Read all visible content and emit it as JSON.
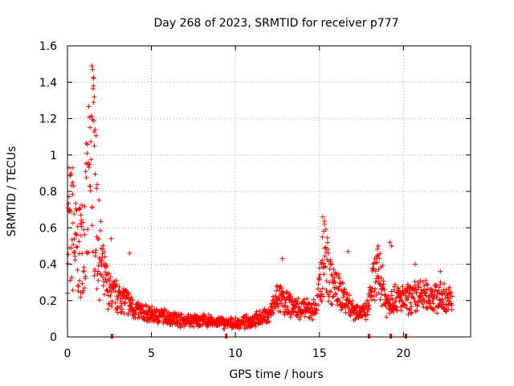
{
  "colors": {
    "series": "#ff0000",
    "grid": "#a0a0a0",
    "axis": "#000000"
  },
  "chart_data": {
    "type": "scatter",
    "title": "Day 268 of 2023, SRMTID for receiver p777",
    "xlabel": "GPS time / hours",
    "ylabel": "SRMTID / TECUs",
    "xlim": [
      0,
      24
    ],
    "ylim": [
      0,
      1.6
    ],
    "x_ticks": [
      0,
      5,
      10,
      15,
      20
    ],
    "x_tick_labels": [
      "0",
      "5",
      "10",
      "15",
      "20"
    ],
    "y_ticks": [
      0,
      0.2,
      0.4,
      0.6,
      0.8,
      1.0,
      1.2,
      1.4,
      1.6
    ],
    "y_tick_labels": [
      "0",
      "0.2",
      "0.4",
      "0.6",
      "0.8",
      "1",
      "1.2",
      "1.4",
      "1.6"
    ],
    "grid": true,
    "marker": "+",
    "x_range_hours": [
      0,
      22.9
    ],
    "trend": [
      {
        "x": 0.0,
        "y": 0.55
      },
      {
        "x": 0.3,
        "y": 0.6
      },
      {
        "x": 0.6,
        "y": 0.45
      },
      {
        "x": 1.0,
        "y": 0.55
      },
      {
        "x": 1.3,
        "y": 0.8
      },
      {
        "x": 1.5,
        "y": 1.0
      },
      {
        "x": 1.8,
        "y": 0.55
      },
      {
        "x": 2.1,
        "y": 0.35
      },
      {
        "x": 2.5,
        "y": 0.25
      },
      {
        "x": 3.0,
        "y": 0.22
      },
      {
        "x": 3.5,
        "y": 0.2
      },
      {
        "x": 4.0,
        "y": 0.15
      },
      {
        "x": 5.0,
        "y": 0.12
      },
      {
        "x": 6.0,
        "y": 0.11
      },
      {
        "x": 7.0,
        "y": 0.09
      },
      {
        "x": 8.0,
        "y": 0.09
      },
      {
        "x": 9.0,
        "y": 0.08
      },
      {
        "x": 10.0,
        "y": 0.07
      },
      {
        "x": 11.0,
        "y": 0.09
      },
      {
        "x": 12.0,
        "y": 0.12
      },
      {
        "x": 12.5,
        "y": 0.22
      },
      {
        "x": 13.0,
        "y": 0.18
      },
      {
        "x": 14.0,
        "y": 0.15
      },
      {
        "x": 14.8,
        "y": 0.15
      },
      {
        "x": 15.3,
        "y": 0.45
      },
      {
        "x": 15.8,
        "y": 0.28
      },
      {
        "x": 16.5,
        "y": 0.22
      },
      {
        "x": 17.0,
        "y": 0.15
      },
      {
        "x": 17.8,
        "y": 0.13
      },
      {
        "x": 18.2,
        "y": 0.3
      },
      {
        "x": 18.6,
        "y": 0.35
      },
      {
        "x": 19.0,
        "y": 0.18
      },
      {
        "x": 19.5,
        "y": 0.22
      },
      {
        "x": 20.0,
        "y": 0.2
      },
      {
        "x": 21.0,
        "y": 0.23
      },
      {
        "x": 22.0,
        "y": 0.22
      },
      {
        "x": 22.9,
        "y": 0.2
      }
    ],
    "spikes": [
      {
        "x": 0.1,
        "y": 0.93
      },
      {
        "x": 0.3,
        "y": 0.85
      },
      {
        "x": 0.8,
        "y": 0.67
      },
      {
        "x": 1.45,
        "y": 1.49
      },
      {
        "x": 1.5,
        "y": 1.47
      },
      {
        "x": 1.55,
        "y": 1.38
      },
      {
        "x": 1.6,
        "y": 1.32
      },
      {
        "x": 1.55,
        "y": 1.29
      },
      {
        "x": 1.65,
        "y": 1.14
      },
      {
        "x": 1.6,
        "y": 1.05
      },
      {
        "x": 2.6,
        "y": 0.54
      },
      {
        "x": 3.7,
        "y": 0.46
      },
      {
        "x": 12.8,
        "y": 0.43
      },
      {
        "x": 15.2,
        "y": 0.66
      },
      {
        "x": 15.3,
        "y": 0.62
      },
      {
        "x": 15.25,
        "y": 0.58
      },
      {
        "x": 16.7,
        "y": 0.47
      },
      {
        "x": 18.5,
        "y": 0.5
      },
      {
        "x": 19.2,
        "y": 0.52
      },
      {
        "x": 19.3,
        "y": 0.5
      },
      {
        "x": 20.7,
        "y": 0.4
      },
      {
        "x": 22.2,
        "y": 0.36
      }
    ],
    "gap_markers_x": [
      2.65,
      9.45,
      17.95,
      19.25,
      20.15
    ]
  }
}
